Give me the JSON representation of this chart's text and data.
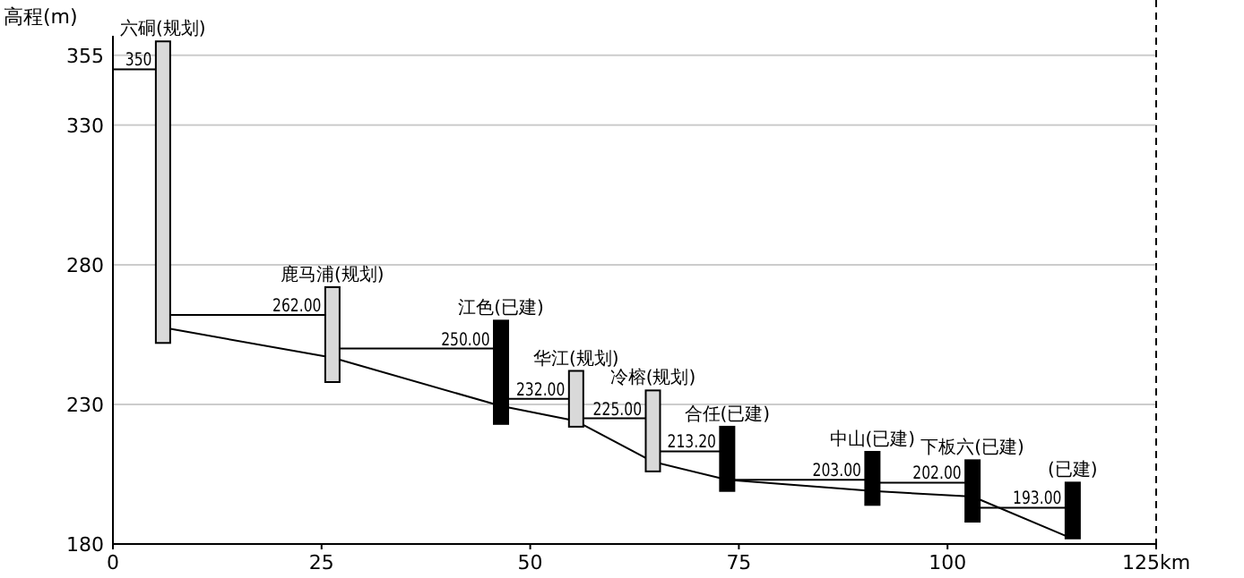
{
  "chart_data": {
    "type": "bar",
    "ylabel": "高程(m)",
    "xlim": [
      0,
      125
    ],
    "xticks": [
      0,
      25,
      50,
      75,
      100,
      {
        "value": 125,
        "label": "125km"
      }
    ],
    "ylim": [
      180,
      362
    ],
    "yticks": [
      180,
      230,
      280,
      330,
      355
    ],
    "grid": "y",
    "x": [
      6,
      26.3,
      46.5,
      55.5,
      64.7,
      73.6,
      91,
      103,
      115
    ],
    "series": [
      {
        "base": [
          252,
          238,
          223,
          222,
          206,
          199,
          194,
          188,
          182
        ],
        "values": [
          108,
          34,
          37,
          20,
          29,
          23,
          19,
          22,
          20
        ],
        "colors": [
          "#d9d9d9",
          "#d9d9d9",
          "#000000",
          "#d9d9d9",
          "#d9d9d9",
          "#000000",
          "#000000",
          "#000000",
          "#000000"
        ]
      },
      {
        "type": "line",
        "color": "#000000",
        "x": [
          0,
          5.1
        ],
        "values": [
          350,
          350
        ],
        "value_labels": [
          null,
          "350"
        ]
      },
      {
        "type": "line",
        "color": "#000000",
        "x": [
          6.9,
          25.4
        ],
        "values": [
          262,
          262
        ],
        "value_labels": [
          null,
          "262.00"
        ]
      },
      {
        "type": "line",
        "color": "#000000",
        "x": [
          27.2,
          45.6
        ],
        "values": [
          250,
          250
        ],
        "value_labels": [
          null,
          "250.00"
        ]
      },
      {
        "type": "line",
        "color": "#000000",
        "x": [
          47.4,
          54.6
        ],
        "values": [
          232,
          232
        ],
        "value_labels": [
          null,
          "232.00"
        ]
      },
      {
        "type": "line",
        "color": "#000000",
        "x": [
          56.4,
          63.8
        ],
        "values": [
          225,
          225
        ],
        "value_labels": [
          null,
          "225.00"
        ]
      },
      {
        "type": "line",
        "color": "#000000",
        "x": [
          65.6,
          72.7
        ],
        "values": [
          213.2,
          213.2
        ],
        "value_labels": [
          null,
          "213.20"
        ]
      },
      {
        "type": "line",
        "color": "#000000",
        "x": [
          74.5,
          90.1
        ],
        "values": [
          203,
          203
        ],
        "value_labels": [
          null,
          "203.00"
        ]
      },
      {
        "type": "line",
        "color": "#000000",
        "x": [
          91.9,
          102.1
        ],
        "values": [
          202,
          202
        ],
        "value_labels": [
          null,
          "202.00"
        ]
      },
      {
        "type": "line",
        "color": "#000000",
        "x": [
          103.9,
          114.1
        ],
        "values": [
          193,
          193
        ],
        "value_labels": [
          null,
          "193.00"
        ]
      },
      {
        "type": "line",
        "color": "#000000",
        "x": [
          6.9,
          26.3,
          46.5,
          55.5,
          64.7,
          73.6,
          91,
          103,
          114.1
        ],
        "values": [
          257,
          246.7,
          229.4,
          224,
          209.5,
          203,
          199,
          197,
          183
        ]
      }
    ],
    "ref_lines": [
      {
        "axis": "x",
        "value": 125,
        "line_style": "dashed",
        "color": "#000000"
      }
    ],
    "annotations": [
      {
        "text": "六硐(规划)",
        "x": 6,
        "y": 360
      },
      {
        "text": "鹿马浦(规划)",
        "x": 26.3,
        "y": 272
      },
      {
        "text": "江色(已建)",
        "x": 46.5,
        "y": 260
      },
      {
        "text": "华江(规划)",
        "x": 55.5,
        "y": 242
      },
      {
        "text": "冷榕(规划)",
        "x": 64.7,
        "y": 235
      },
      {
        "text": "合任(已建)",
        "x": 73.6,
        "y": 222
      },
      {
        "text": "中山(已建)",
        "x": 91,
        "y": 213
      },
      {
        "text": "下板六(已建)",
        "x": 103,
        "y": 210
      },
      {
        "text": "(已建)",
        "x": 115,
        "y": 202
      }
    ]
  }
}
